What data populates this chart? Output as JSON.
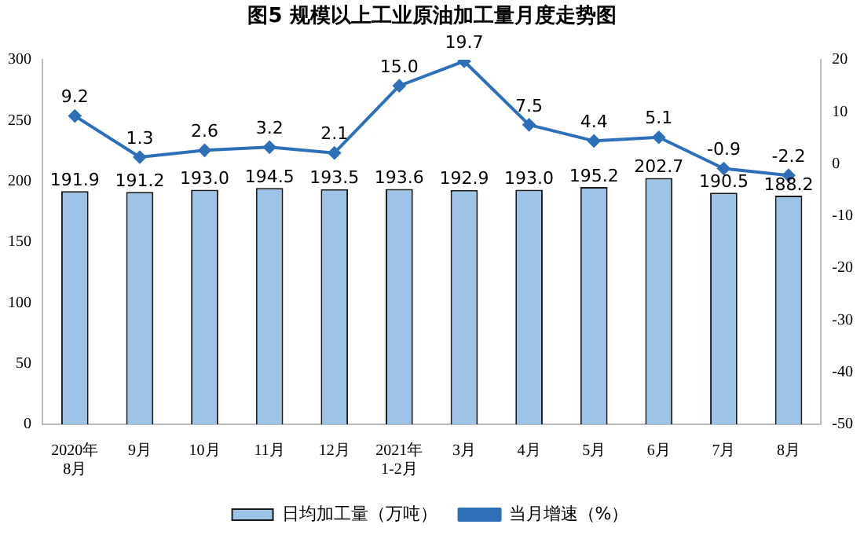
{
  "chart_data": {
    "type": "bar",
    "title": "图5  规模以上工业原油加工量月度走势图",
    "categories": [
      "2020年\n8月",
      "9月",
      "10月",
      "11月",
      "12月",
      "2021年\n1-2月",
      "3月",
      "4月",
      "5月",
      "6月",
      "7月",
      "8月"
    ],
    "series": [
      {
        "name": "日均加工量（万吨）",
        "color": "#9dc3e6",
        "values": [
          191.9,
          191.2,
          193.0,
          194.5,
          193.5,
          193.6,
          192.9,
          193.0,
          195.2,
          202.7,
          190.5,
          188.2
        ],
        "value_labels": [
          "191.9",
          "191.2",
          "193.0",
          "194.5",
          "193.5",
          "193.6",
          "192.9",
          "193.0",
          "195.2",
          "202.7",
          "190.5",
          "188.2"
        ]
      },
      {
        "name": "当月增速（%）",
        "type": "line",
        "axis": "y2",
        "color": "#2e6fba",
        "values": [
          9.2,
          1.3,
          2.6,
          3.2,
          2.1,
          15.0,
          19.7,
          7.5,
          4.4,
          5.1,
          -0.9,
          -2.2
        ],
        "value_labels": [
          "9.2",
          "1.3",
          "2.6",
          "3.2",
          "2.1",
          "15.0",
          "19.7",
          "7.5",
          "4.4",
          "5.1",
          "-0.9",
          "-2.2"
        ]
      }
    ],
    "ylim": [
      0,
      300
    ],
    "yticks": [
      0,
      50,
      100,
      150,
      200,
      250,
      300
    ],
    "y2lim": [
      -50,
      20
    ],
    "y2ticks": [
      -50,
      -40,
      -30,
      -20,
      -10,
      0,
      10,
      20
    ],
    "grid": false,
    "legend": "bottom",
    "marker": "diamond",
    "line_style": "solid"
  }
}
